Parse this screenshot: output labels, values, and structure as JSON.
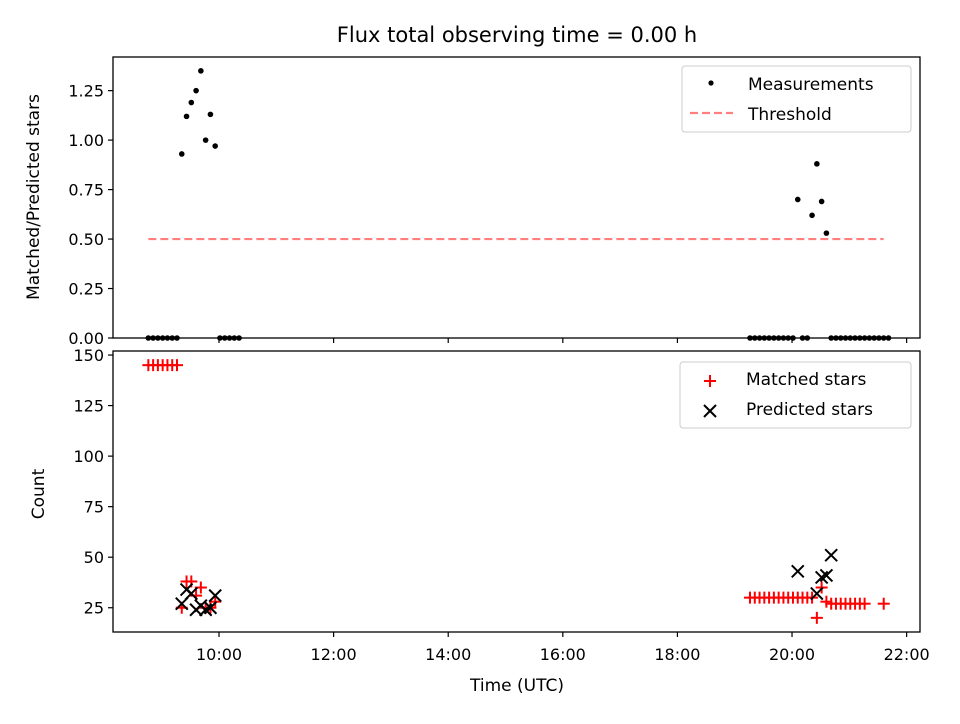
{
  "figure_title": "Flux total observing time = 0.00 h",
  "chart_data": [
    {
      "type": "scatter",
      "panel": "top",
      "title": "Flux total observing time = 0.00 h",
      "xlabel": "",
      "ylabel": "Matched/Predicted stars",
      "xlim": [
        "08:09",
        "22:14"
      ],
      "ylim": [
        0,
        1.42
      ],
      "xticks": [
        "10:00",
        "12:00",
        "14:00",
        "16:00",
        "18:00",
        "20:00",
        "22:00"
      ],
      "yticks": [
        "0.00",
        "0.25",
        "0.50",
        "0.75",
        "1.00",
        "1.25"
      ],
      "legend_position": "top-right",
      "series": [
        {
          "name": "Measurements",
          "kind": "points",
          "color": "#000000",
          "x": [
            "08:46",
            "08:51",
            "08:56",
            "09:01",
            "09:06",
            "09:11",
            "09:16",
            "09:21",
            "09:26",
            "09:31",
            "09:36",
            "09:41",
            "09:46",
            "09:51",
            "09:56",
            "10:01",
            "10:06",
            "10:11",
            "10:16",
            "10:21",
            "19:16",
            "19:21",
            "19:26",
            "19:31",
            "19:36",
            "19:41",
            "19:46",
            "19:51",
            "19:56",
            "20:01",
            "20:06",
            "20:11",
            "20:16",
            "20:21",
            "20:26",
            "20:31",
            "20:36",
            "20:41",
            "20:46",
            "20:51",
            "20:56",
            "21:01",
            "21:06",
            "21:11",
            "21:16",
            "21:21",
            "21:26",
            "21:31",
            "21:36",
            "21:41"
          ],
          "y": [
            0,
            0,
            0,
            0,
            0,
            0,
            0,
            0.93,
            1.12,
            1.19,
            1.25,
            1.35,
            1.0,
            1.13,
            0.97,
            0,
            0,
            0,
            0,
            0,
            0,
            0,
            0,
            0,
            0,
            0,
            0,
            0,
            0,
            0,
            0.7,
            0,
            0,
            0.62,
            0.88,
            0.69,
            0.53,
            0,
            0,
            0,
            0,
            0,
            0,
            0,
            0,
            0,
            0,
            0,
            0,
            0
          ]
        },
        {
          "name": "Threshold",
          "kind": "line",
          "color": "#ff7f7f",
          "dashed": true,
          "x": [
            "08:46",
            "21:36"
          ],
          "y": [
            0.5,
            0.5
          ]
        }
      ]
    },
    {
      "type": "scatter",
      "panel": "bottom",
      "xlabel": "Time (UTC)",
      "ylabel": "Count",
      "xlim": [
        "08:09",
        "22:14"
      ],
      "ylim": [
        13,
        152
      ],
      "xticks": [
        "10:00",
        "12:00",
        "14:00",
        "16:00",
        "18:00",
        "20:00",
        "22:00"
      ],
      "yticks": [
        "25",
        "50",
        "75",
        "100",
        "125",
        "150"
      ],
      "legend_position": "top-right",
      "series": [
        {
          "name": "Matched stars",
          "marker": "plus",
          "color": "#ff0000",
          "x": [
            "08:46",
            "08:51",
            "08:56",
            "09:01",
            "09:06",
            "09:11",
            "09:16",
            "09:21",
            "09:26",
            "09:31",
            "09:36",
            "09:41",
            "09:46",
            "09:51",
            "09:56",
            "19:16",
            "19:21",
            "19:26",
            "19:31",
            "19:36",
            "19:41",
            "19:46",
            "19:51",
            "19:56",
            "20:01",
            "20:06",
            "20:11",
            "20:16",
            "20:21",
            "20:26",
            "20:31",
            "20:36",
            "20:41",
            "20:46",
            "20:51",
            "20:56",
            "21:01",
            "21:06",
            "21:11",
            "21:16",
            "21:36"
          ],
          "y": [
            145,
            145,
            145,
            145,
            145,
            145,
            145,
            25,
            38,
            38,
            31,
            35,
            25,
            25,
            28,
            30,
            30,
            30,
            30,
            30,
            30,
            30,
            30,
            30,
            30,
            30,
            30,
            30,
            30,
            20,
            35,
            28,
            27,
            27,
            27,
            27,
            27,
            27,
            27,
            27,
            27
          ]
        },
        {
          "name": "Predicted stars",
          "marker": "x",
          "color": "#000000",
          "x": [
            "09:21",
            "09:26",
            "09:31",
            "09:36",
            "09:41",
            "09:46",
            "09:51",
            "09:56",
            "20:06",
            "20:26",
            "20:31",
            "20:36",
            "20:41"
          ],
          "y": [
            27,
            34,
            32,
            24,
            26,
            24,
            25,
            31,
            43,
            32,
            40,
            41,
            51
          ]
        }
      ]
    }
  ]
}
